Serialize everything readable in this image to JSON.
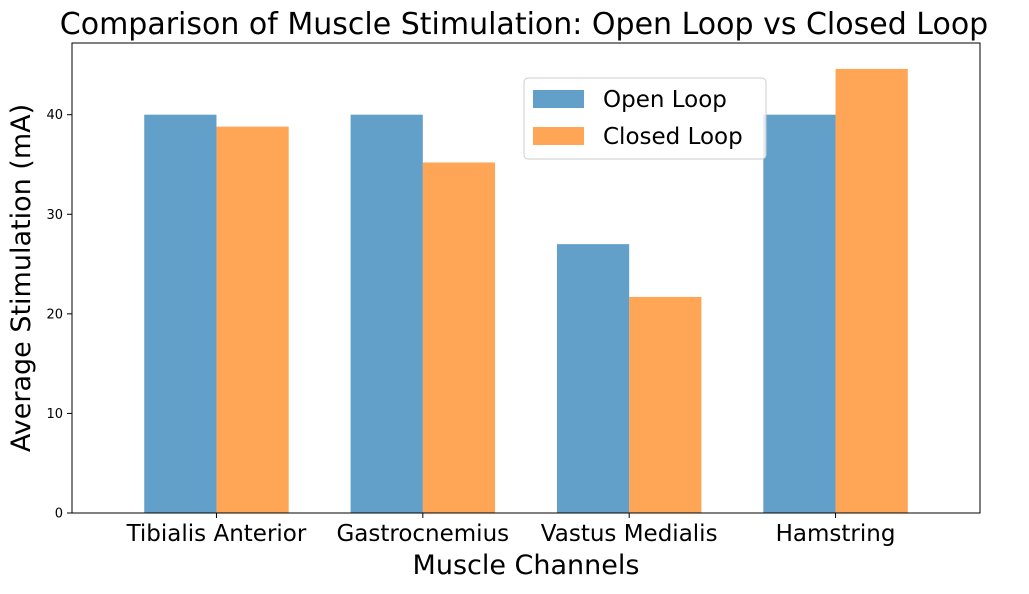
{
  "chart_data": {
    "type": "bar",
    "title": "Comparison of Muscle Stimulation: Open Loop vs Closed Loop",
    "xlabel": "Muscle Channels",
    "ylabel": "Average Stimulation (mA)",
    "categories": [
      "Tibialis Anterior",
      "Gastrocnemius",
      "Vastus Medialis",
      "Hamstring"
    ],
    "series": [
      {
        "name": "Open Loop",
        "color": "#1f77b4",
        "values": [
          40.0,
          40.0,
          27.0,
          40.0
        ]
      },
      {
        "name": "Closed Loop",
        "color": "#ff7f0e",
        "values": [
          38.8,
          35.2,
          21.7,
          44.6
        ]
      }
    ],
    "ylim": [
      0,
      47.2
    ],
    "yticks": [
      0,
      10,
      20,
      30,
      40
    ],
    "grid": false,
    "legend": {
      "position": "top-right"
    },
    "bar_opacity": 0.7
  }
}
